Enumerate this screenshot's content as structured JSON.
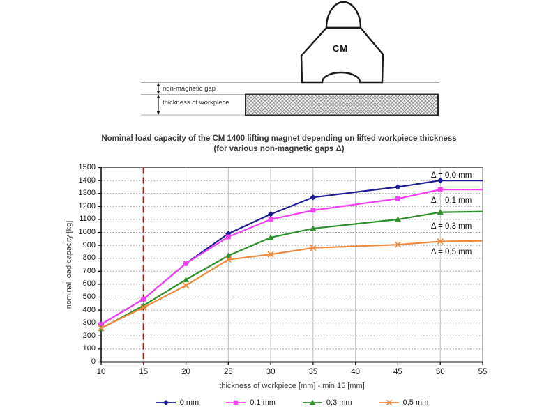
{
  "diagram": {
    "magnet_label": "CM",
    "gap_label": "non-magnetic gap",
    "workpiece_label": "thickness of workpiece"
  },
  "title": {
    "line1": "Nominal load capacity of the CM 1400 lifting magnet depending on lifted workpiece thickness",
    "line2": "(for various non-magnetic gaps Δ)"
  },
  "chart_data": {
    "type": "line",
    "title": "Nominal load capacity of the CM 1400 lifting magnet depending on lifted workpiece thickness (for various non-magnetic gaps Δ)",
    "xlabel": "thickness of workpiece [mm] - min 15 [mm]",
    "ylabel": "nominal load capacity [kg]",
    "xlim": [
      10,
      55
    ],
    "ylim": [
      0,
      1500
    ],
    "x_ticks": [
      10,
      15,
      20,
      25,
      30,
      35,
      40,
      45,
      50,
      55
    ],
    "y_ticks": [
      0,
      100,
      200,
      300,
      400,
      500,
      600,
      700,
      800,
      900,
      1000,
      1100,
      1200,
      1300,
      1400,
      1500
    ],
    "grid": {
      "horizontal": "dotted",
      "vertical": "solid"
    },
    "legend_position": "bottom",
    "x": [
      10,
      15,
      20,
      25,
      30,
      35,
      45,
      50,
      55
    ],
    "markers_at": [
      10,
      15,
      20,
      25,
      30,
      35,
      45,
      50
    ],
    "series": [
      {
        "name": "0 mm",
        "color": "#1e1e96",
        "marker": "diamond",
        "values": [
          290,
          485,
          760,
          990,
          1140,
          1270,
          1350,
          1400,
          1400
        ]
      },
      {
        "name": "0,1 mm",
        "color": "#f340f3",
        "marker": "square",
        "values": [
          290,
          485,
          760,
          965,
          1100,
          1170,
          1260,
          1330,
          1330
        ]
      },
      {
        "name": "0,3 mm",
        "color": "#2d8f2d",
        "marker": "triangle",
        "values": [
          258,
          435,
          635,
          820,
          960,
          1030,
          1100,
          1155,
          1160
        ]
      },
      {
        "name": "0,5 mm",
        "color": "#ef8a3d",
        "marker": "x",
        "values": [
          262,
          420,
          590,
          790,
          830,
          880,
          905,
          930,
          935
        ]
      }
    ],
    "reference_line": {
      "x": 15,
      "color": "#9b2423",
      "style": "dashed"
    },
    "annotations": [
      {
        "label": "Δ = 0,0 mm",
        "x_mm": 48.9,
        "y_kg": 1440
      },
      {
        "label": "Δ = 0,1 mm",
        "x_mm": 48.9,
        "y_kg": 1245
      },
      {
        "label": "Δ = 0,3 mm",
        "x_mm": 48.9,
        "y_kg": 1045
      },
      {
        "label": "Δ = 0,5 mm",
        "x_mm": 48.9,
        "y_kg": 848
      }
    ]
  }
}
